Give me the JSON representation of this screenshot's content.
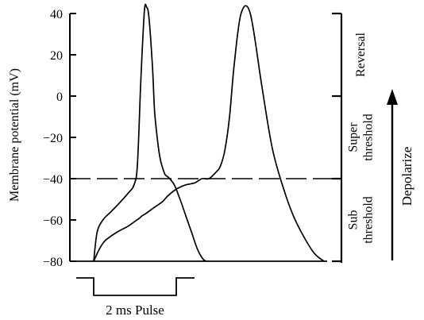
{
  "chart_data": {
    "type": "line",
    "title": "",
    "xlabel": "",
    "ylabel": "Membrane potential (mV)",
    "ylim": [
      -80,
      45
    ],
    "yticks": [
      40,
      20,
      0,
      -20,
      -40,
      -60,
      -80
    ],
    "ytick_labels": [
      "40",
      "20",
      "0",
      "−20",
      "−40",
      "−60",
      "−80"
    ],
    "threshold": {
      "value": -40,
      "style": "dashed"
    },
    "series": [
      {
        "x": [
          0,
          3,
          8,
          15,
          22,
          30,
          35,
          38,
          41,
          44,
          46,
          48,
          51,
          53,
          56,
          58,
          60,
          62,
          64,
          66,
          70,
          75,
          80,
          85,
          90,
          95,
          98
        ],
        "y": [
          -80,
          -66,
          -60,
          -56,
          -52,
          -47,
          -43,
          -33,
          8,
          41,
          43,
          38,
          15,
          -8,
          -24,
          -31,
          -35,
          -38,
          -39,
          -40,
          -43,
          -50,
          -58,
          -66,
          -74,
          -79,
          -80
        ]
      },
      {
        "x": [
          0,
          5,
          10,
          20,
          30,
          35,
          40,
          42,
          45,
          50,
          55,
          60,
          65,
          72,
          80,
          88,
          94,
          100,
          106,
          110,
          114,
          118,
          122,
          128,
          136,
          146,
          155,
          165,
          175,
          190,
          200
        ],
        "y": [
          -80,
          -74,
          -70,
          -66,
          -63,
          -61,
          -59,
          -58,
          -57,
          -55,
          -53,
          -51,
          -48,
          -45,
          -43,
          -42,
          -40,
          -40,
          -37,
          -34,
          -26,
          -10,
          15,
          40,
          40,
          5,
          -25,
          -45,
          -60,
          -75,
          -80
        ]
      }
    ],
    "right_scale": {
      "labels": [
        {
          "lines": [
            "Reversal"
          ]
        },
        {
          "lines": [
            "Super",
            "threshold"
          ]
        },
        {
          "lines": [
            "Sub",
            "threshold"
          ]
        }
      ],
      "arrow_label": "Depolarize"
    },
    "stimulus_label": "2 ms Pulse"
  }
}
